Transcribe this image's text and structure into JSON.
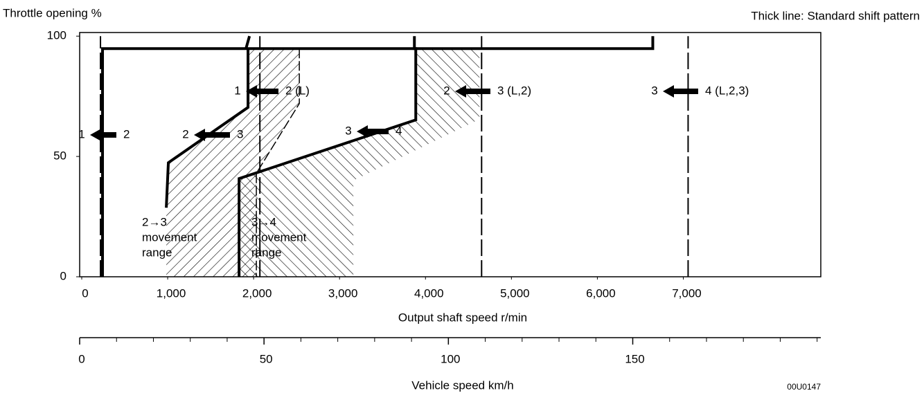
{
  "chart_data": {
    "type": "line",
    "title": "Thick line: Standard shift pattern",
    "y_label": "Throttle opening %",
    "x_label": "Output shaft speed r/min",
    "x2_label": "Vehicle speed km/h",
    "code": "00U0147",
    "xlim": [
      0,
      8600
    ],
    "ylim": [
      0,
      101.5
    ],
    "xticks": [
      0,
      {
        "value": 1000,
        "label": "1,000"
      },
      {
        "value": 2000,
        "label": "2,000"
      },
      {
        "value": 3000,
        "label": "3,000"
      },
      {
        "value": 4000,
        "label": "4,000"
      },
      {
        "value": 5000,
        "label": "5,000"
      },
      {
        "value": 6000,
        "label": "6,000"
      },
      {
        "value": 7000,
        "label": "7,000"
      }
    ],
    "yticks": [
      0,
      50,
      100
    ],
    "x2lim": [
      0,
      201
    ],
    "x2ticks": [
      0,
      50,
      100,
      150
    ],
    "x2minor": [
      10,
      20,
      30,
      40,
      60,
      70,
      80,
      90,
      110,
      120,
      130,
      140,
      160,
      170,
      180,
      190,
      200
    ],
    "series": [
      {
        "style": "thick",
        "color": "#000000",
        "x": [
          242,
          242,
          6645,
          6645
        ],
        "values": [
          0,
          94.8,
          94.8,
          100
        ]
      },
      {
        "style": "thick",
        "color": "#000000",
        "x": [
          1911,
          1952
        ],
        "values": [
          94.8,
          100
        ]
      },
      {
        "style": "dashed",
        "color": "#000000",
        "x": [
          218,
          218
        ],
        "values": [
          0,
          100
        ]
      },
      {
        "style": "thick",
        "color": "#000000",
        "x": [
          1935,
          1935,
          1008,
          984
        ],
        "values": [
          94.8,
          70.4,
          47.4,
          28.7
        ]
      },
      {
        "style": "dashed",
        "color": "#000000",
        "x": [
          2073,
          2073
        ],
        "values": [
          0,
          100
        ]
      },
      {
        "style": "thin",
        "color": "#000000",
        "x": [
          2532,
          2532,
          2032,
          2032
        ],
        "values": [
          94.8,
          72,
          43,
          0
        ]
      },
      {
        "style": "thick",
        "color": "#000000",
        "x": [
          3871,
          3871,
          3887,
          3887,
          1831,
          1831
        ],
        "values": [
          100,
          94.8,
          94.8,
          65.2,
          40.8,
          0
        ]
      },
      {
        "style": "dashed",
        "color": "#000000",
        "x": [
          4653,
          4653
        ],
        "values": [
          0,
          100
        ]
      },
      {
        "style": "dashed",
        "color": "#000000",
        "x": [
          7056,
          7056
        ],
        "values": [
          0,
          100
        ]
      }
    ],
    "regions": [
      {
        "x": [
          1935,
          2532,
          2532,
          2032,
          2032,
          984,
          984,
          1008,
          1935
        ],
        "values": [
          94.8,
          94.8,
          72,
          43,
          0,
          0,
          28.7,
          47.4,
          70.4
        ],
        "hatch": "forward"
      },
      {
        "x": [
          3887,
          4629,
          4629,
          3161,
          3161,
          1831,
          1831,
          3887
        ],
        "values": [
          94.8,
          94.8,
          65.5,
          40,
          0,
          0,
          40.8,
          65.2
        ],
        "hatch": "back"
      }
    ],
    "annotations": [
      "1",
      "2",
      "1",
      "2 (L)",
      "2",
      "3",
      "2",
      "3 (L,2)",
      "3",
      "4",
      "3",
      "4 (L,2,3)"
    ],
    "range_labels": [
      [
        "2→3",
        "movement",
        "range"
      ],
      [
        "3→4",
        "movement",
        "range"
      ]
    ]
  }
}
